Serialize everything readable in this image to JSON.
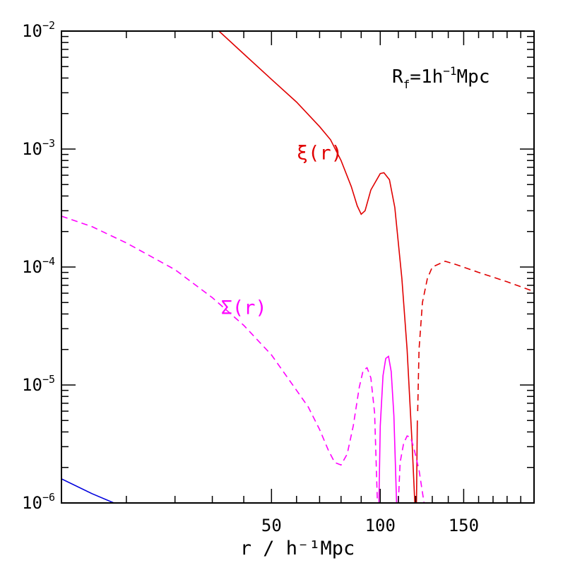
{
  "chart_data": {
    "type": "line",
    "xlabel": "r / h⁻¹Mpc",
    "ylabel": "",
    "xscale": "sqrt",
    "yscale": "log",
    "xlim": [
      2,
      200
    ],
    "ylim": [
      1e-06,
      0.01
    ],
    "x_ticks": [
      {
        "value": 50,
        "label": "50"
      },
      {
        "value": 100,
        "label": "100"
      },
      {
        "value": 150,
        "label": "150"
      }
    ],
    "y_ticks": [
      {
        "value": 1e-06,
        "base": "10",
        "exp": "−6"
      },
      {
        "value": 1e-05,
        "base": "10",
        "exp": "−5"
      },
      {
        "value": 0.0001,
        "base": "10",
        "exp": "−4"
      },
      {
        "value": 0.001,
        "base": "10",
        "exp": "−3"
      },
      {
        "value": 0.01,
        "base": "10",
        "exp": "−2"
      }
    ],
    "annotation": {
      "main": "R",
      "sub": "f",
      "rest1": "=1h",
      "sup": "−1",
      "rest2": "Mpc"
    },
    "series": [
      {
        "name": "ξ(r)",
        "color": "#e00000",
        "style": "solid",
        "points": [
          [
            32,
            0.01
          ],
          [
            40,
            0.0064
          ],
          [
            50,
            0.0039
          ],
          [
            60,
            0.0025
          ],
          [
            70,
            0.00155
          ],
          [
            75,
            0.0012
          ],
          [
            80,
            0.0008
          ],
          [
            85,
            0.00048
          ],
          [
            88,
            0.00033
          ],
          [
            90,
            0.00028
          ],
          [
            92,
            0.0003
          ],
          [
            95,
            0.00045
          ],
          [
            100,
            0.00062
          ],
          [
            102,
            0.00063
          ],
          [
            105,
            0.00055
          ],
          [
            108,
            0.00032
          ],
          [
            112,
            8e-05
          ],
          [
            115,
            2e-05
          ],
          [
            118,
            3e-06
          ],
          [
            119.5,
            1e-06
          ]
        ]
      },
      {
        "name": "ξ(r)",
        "color": "#e00000",
        "style": "solid",
        "points": [
          [
            120.5,
            1e-06
          ],
          [
            121,
            5e-06
          ]
        ]
      },
      {
        "name": "ξ(r)",
        "color": "#e00000",
        "style": "dashed",
        "points": [
          [
            121.2,
            6e-06
          ],
          [
            122,
            2e-05
          ],
          [
            124,
            5e-05
          ],
          [
            127,
            8e-05
          ],
          [
            130,
            0.0001
          ],
          [
            138,
            0.000112
          ],
          [
            145,
            0.000105
          ],
          [
            160,
            9e-05
          ],
          [
            180,
            7.5e-05
          ],
          [
            200,
            6.2e-05
          ]
        ]
      },
      {
        "name": "Σ(r)",
        "color": "#ff00ff",
        "style": "dashed",
        "points": [
          [
            2,
            0.00027
          ],
          [
            5,
            0.00022
          ],
          [
            10,
            0.00016
          ],
          [
            20,
            9.5e-05
          ],
          [
            30,
            5.5e-05
          ],
          [
            40,
            3.2e-05
          ],
          [
            50,
            1.8e-05
          ],
          [
            60,
            9e-06
          ],
          [
            65,
            6.5e-06
          ],
          [
            70,
            4.2e-06
          ],
          [
            74,
            2.8e-06
          ],
          [
            77,
            2.2e-06
          ],
          [
            80,
            2.1e-06
          ],
          [
            83,
            2.6e-06
          ],
          [
            86,
            4.5e-06
          ],
          [
            89,
            9.5e-06
          ],
          [
            91,
            1.33e-05
          ],
          [
            93,
            1.4e-05
          ],
          [
            95,
            1.15e-05
          ],
          [
            97,
            5.8e-06
          ],
          [
            98.5,
            1e-06
          ]
        ]
      },
      {
        "name": "Σ(r)",
        "color": "#ff00ff",
        "style": "solid",
        "points": [
          [
            99.3,
            1e-06
          ],
          [
            100,
            4.5e-06
          ],
          [
            101.5,
            1.2e-05
          ],
          [
            103,
            1.68e-05
          ],
          [
            104.5,
            1.75e-05
          ],
          [
            106,
            1.3e-05
          ],
          [
            107.5,
            5.5e-06
          ],
          [
            109,
            1e-06
          ]
        ]
      },
      {
        "name": "Σ(r)",
        "color": "#ff00ff",
        "style": "dashed",
        "points": [
          [
            110,
            1e-06
          ],
          [
            111,
            2.2e-06
          ],
          [
            113,
            3.2e-06
          ],
          [
            115,
            3.7e-06
          ],
          [
            117,
            3.6e-06
          ],
          [
            119,
            2.9e-06
          ],
          [
            122,
            1.9e-06
          ],
          [
            125,
            1e-06
          ]
        ]
      },
      {
        "name": "",
        "color": "#0000dd",
        "style": "solid",
        "points": [
          [
            2,
            1.6e-06
          ],
          [
            5,
            1.2e-06
          ],
          [
            8,
            1e-06
          ]
        ]
      }
    ],
    "labels": [
      {
        "text": "ξ(r)",
        "color": "#e00000",
        "x": 70,
        "y": 0.00082
      },
      {
        "text": "Σ(r)",
        "color": "#ff00ff",
        "x": 40,
        "y": 4e-05
      }
    ],
    "grid": false
  }
}
